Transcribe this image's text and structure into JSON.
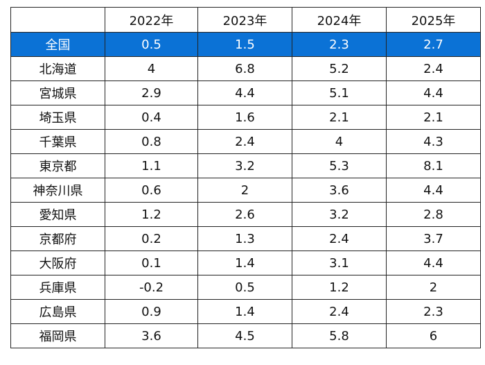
{
  "colors": {
    "highlight_bg": "#0b72d6",
    "highlight_text": "#ffffff",
    "border": "#222222"
  },
  "table": {
    "corner": "",
    "columns": [
      "2022年",
      "2023年",
      "2024年",
      "2025年"
    ],
    "rows": [
      {
        "label": "全国",
        "values": [
          "0.5",
          "1.5",
          "2.3",
          "2.7"
        ],
        "highlight": true
      },
      {
        "label": "北海道",
        "values": [
          "4",
          "6.8",
          "5.2",
          "2.4"
        ]
      },
      {
        "label": "宮城県",
        "values": [
          "2.9",
          "4.4",
          "5.1",
          "4.4"
        ]
      },
      {
        "label": "埼玉県",
        "values": [
          "0.4",
          "1.6",
          "2.1",
          "2.1"
        ]
      },
      {
        "label": "千葉県",
        "values": [
          "0.8",
          "2.4",
          "4",
          "4.3"
        ]
      },
      {
        "label": "東京都",
        "values": [
          "1.1",
          "3.2",
          "5.3",
          "8.1"
        ]
      },
      {
        "label": "神奈川県",
        "values": [
          "0.6",
          "2",
          "3.6",
          "4.4"
        ]
      },
      {
        "label": "愛知県",
        "values": [
          "1.2",
          "2.6",
          "3.2",
          "2.8"
        ]
      },
      {
        "label": "京都府",
        "values": [
          "0.2",
          "1.3",
          "2.4",
          "3.7"
        ]
      },
      {
        "label": "大阪府",
        "values": [
          "0.1",
          "1.4",
          "3.1",
          "4.4"
        ]
      },
      {
        "label": "兵庫県",
        "values": [
          "-0.2",
          "0.5",
          "1.2",
          "2"
        ]
      },
      {
        "label": "広島県",
        "values": [
          "0.9",
          "1.4",
          "2.4",
          "2.3"
        ]
      },
      {
        "label": "福岡県",
        "values": [
          "3.6",
          "4.5",
          "5.8",
          "6"
        ]
      }
    ]
  }
}
